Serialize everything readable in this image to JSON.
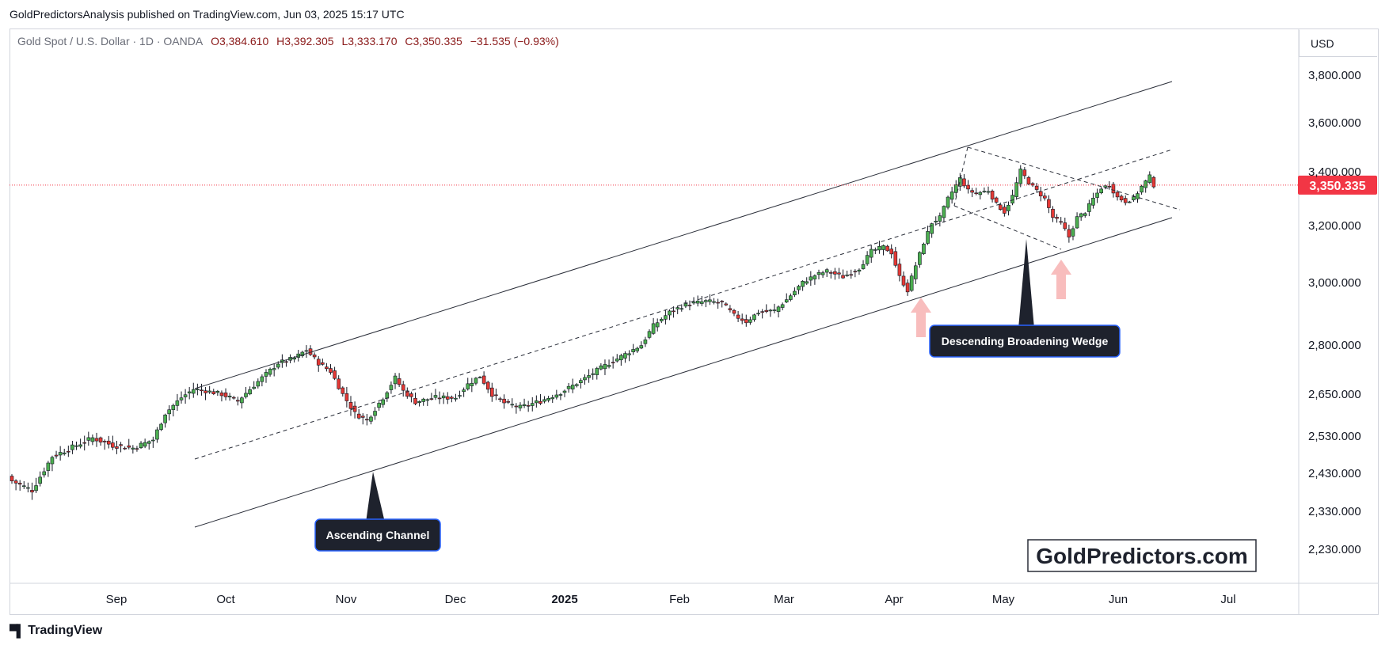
{
  "header": {
    "credit": "GoldPredictorsAnalysis published on TradingView.com, Jun 03, 2025 15:17 UTC"
  },
  "legend": {
    "symbol": "Gold Spot / U.S. Dollar · 1D · OANDA",
    "open": "O3,384.610",
    "high": "H3,392.305",
    "low": "L3,333.170",
    "close": "C3,350.335",
    "change": "−31.535 (−0.93%)"
  },
  "price_axis": {
    "currency": "USD",
    "current_price_label": "3,350.335"
  },
  "footer": {
    "brand": "TradingView"
  },
  "colors": {
    "bull": "#26a69a",
    "bull_body": "#4caf50",
    "bear": "#e53935",
    "current_price": "#f23645",
    "annotation_bg": "#1e222d",
    "arrow": "#f7a3a3"
  },
  "chart_data": {
    "type": "candlestick",
    "title": "Gold Spot / U.S. Dollar · 1D · OANDA",
    "ylim": [
      2150,
      3930
    ],
    "y_ticks": [
      {
        "value": 3800,
        "label": "3,800.000"
      },
      {
        "value": 3600,
        "label": "3,600.000"
      },
      {
        "value": 3400,
        "label": "3,400.000"
      },
      {
        "value": 3200,
        "label": "3,200.000"
      },
      {
        "value": 3000,
        "label": "3,000.000"
      },
      {
        "value": 2800,
        "label": "2,800.000"
      },
      {
        "value": 2650,
        "label": "2,650.000"
      },
      {
        "value": 2530,
        "label": "2,530.000"
      },
      {
        "value": 2430,
        "label": "2,430.000"
      },
      {
        "value": 2330,
        "label": "2,330.000"
      },
      {
        "value": 2230,
        "label": "2,230.000"
      }
    ],
    "x_labels": [
      {
        "label": "Sep",
        "bold": false
      },
      {
        "label": "Oct",
        "bold": false
      },
      {
        "label": "Nov",
        "bold": false
      },
      {
        "label": "Dec",
        "bold": false
      },
      {
        "label": "2025",
        "bold": true
      },
      {
        "label": "Feb",
        "bold": false
      },
      {
        "label": "Mar",
        "bold": false
      },
      {
        "label": "Apr",
        "bold": false
      },
      {
        "label": "May",
        "bold": false
      },
      {
        "label": "Jun",
        "bold": false
      },
      {
        "label": "Jul",
        "bold": false
      }
    ],
    "current_price": 3350.335,
    "keypoints": [
      [
        0,
        2410
      ],
      [
        5,
        2385
      ],
      [
        10,
        2475
      ],
      [
        15,
        2500
      ],
      [
        20,
        2525
      ],
      [
        25,
        2505
      ],
      [
        30,
        2498
      ],
      [
        35,
        2520
      ],
      [
        38,
        2595
      ],
      [
        42,
        2640
      ],
      [
        45,
        2665
      ],
      [
        48,
        2660
      ],
      [
        52,
        2650
      ],
      [
        56,
        2630
      ],
      [
        62,
        2700
      ],
      [
        66,
        2745
      ],
      [
        70,
        2760
      ],
      [
        73,
        2785
      ],
      [
        76,
        2745
      ],
      [
        79,
        2720
      ],
      [
        82,
        2650
      ],
      [
        85,
        2595
      ],
      [
        88,
        2575
      ],
      [
        92,
        2640
      ],
      [
        95,
        2700
      ],
      [
        97,
        2660
      ],
      [
        100,
        2628
      ],
      [
        105,
        2640
      ],
      [
        110,
        2640
      ],
      [
        113,
        2680
      ],
      [
        116,
        2705
      ],
      [
        119,
        2650
      ],
      [
        122,
        2625
      ],
      [
        126,
        2612
      ],
      [
        131,
        2630
      ],
      [
        136,
        2655
      ],
      [
        141,
        2690
      ],
      [
        146,
        2730
      ],
      [
        151,
        2765
      ],
      [
        156,
        2800
      ],
      [
        159,
        2862
      ],
      [
        163,
        2905
      ],
      [
        167,
        2930
      ],
      [
        172,
        2940
      ],
      [
        176,
        2935
      ],
      [
        179,
        2895
      ],
      [
        182,
        2875
      ],
      [
        185,
        2905
      ],
      [
        189,
        2910
      ],
      [
        192,
        2945
      ],
      [
        196,
        3000
      ],
      [
        199,
        3025
      ],
      [
        202,
        3040
      ],
      [
        206,
        3020
      ],
      [
        210,
        3050
      ],
      [
        213,
        3110
      ],
      [
        216,
        3125
      ],
      [
        218,
        3105
      ],
      [
        220,
        3020
      ],
      [
        222,
        2975
      ],
      [
        224,
        3060
      ],
      [
        226,
        3140
      ],
      [
        228,
        3210
      ],
      [
        230,
        3230
      ],
      [
        232,
        3300
      ],
      [
        235,
        3375
      ],
      [
        237,
        3330
      ],
      [
        239,
        3320
      ],
      [
        242,
        3330
      ],
      [
        244,
        3280
      ],
      [
        246,
        3250
      ],
      [
        248,
        3310
      ],
      [
        250,
        3405
      ],
      [
        252,
        3360
      ],
      [
        254,
        3330
      ],
      [
        256,
        3300
      ],
      [
        258,
        3230
      ],
      [
        260,
        3210
      ],
      [
        262,
        3160
      ],
      [
        264,
        3230
      ],
      [
        266,
        3250
      ],
      [
        268,
        3300
      ],
      [
        270,
        3340
      ],
      [
        272,
        3350
      ],
      [
        274,
        3305
      ],
      [
        276,
        3290
      ],
      [
        278,
        3300
      ],
      [
        280,
        3345
      ],
      [
        282,
        3382
      ],
      [
        283,
        3350
      ]
    ],
    "patterns": [
      {
        "name": "Ascending Channel"
      },
      {
        "name": "Descending Broadening Wedge"
      }
    ],
    "watermark": "GoldPredictors.com"
  }
}
